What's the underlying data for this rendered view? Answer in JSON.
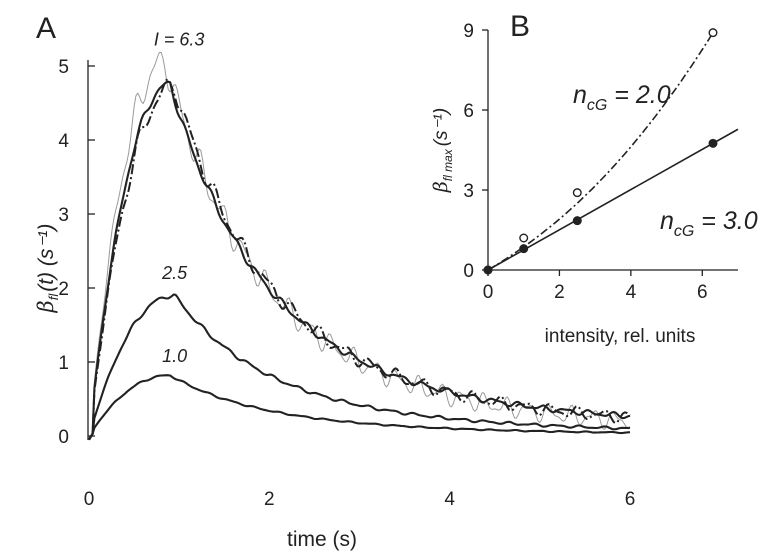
{
  "panels": {
    "A": "A",
    "B": "B"
  },
  "chart_data": [
    {
      "type": "line",
      "panel": "A",
      "xlabel": "time (s)",
      "ylabel_main": "β",
      "ylabel_sub": "fl",
      "ylabel_tail": "(t) (s⁻¹)",
      "xlim": [
        0,
        6
      ],
      "ylim": [
        0,
        5
      ],
      "xticks": [
        0,
        2,
        4,
        6
      ],
      "yticks": [
        0,
        1,
        2,
        3,
        4,
        5
      ],
      "annotations": [
        {
          "text": "I = 6.3",
          "x": 1.0,
          "y": 5.28
        },
        {
          "text": "2.5",
          "x": 0.95,
          "y": 2.12
        },
        {
          "text": "1.0",
          "x": 0.95,
          "y": 1.0
        }
      ],
      "series": [
        {
          "intensity": 6.3,
          "style": "solid",
          "peak": 4.75,
          "t_peak": 0.9,
          "baseline": 0.12
        },
        {
          "intensity": 6.3,
          "style": "dash-dot",
          "peak": 4.72,
          "t_peak": 0.95,
          "baseline": 0.1
        },
        {
          "intensity": 6.3,
          "style": "thin-gray",
          "peak": 5.05,
          "t_peak": 0.85,
          "baseline": 0.05
        },
        {
          "intensity": 2.5,
          "style": "solid",
          "peak": 1.9,
          "t_peak": 0.95,
          "baseline": 0.04
        },
        {
          "intensity": 1.0,
          "style": "solid",
          "peak": 0.82,
          "t_peak": 0.9,
          "baseline": 0.02
        }
      ]
    },
    {
      "type": "scatter",
      "panel": "B",
      "xlabel": "intensity, rel. units",
      "ylabel_main": "β",
      "ylabel_sub": "fl max",
      "ylabel_tail": "(s⁻¹)",
      "xlim": [
        0,
        7
      ],
      "ylim": [
        0,
        9
      ],
      "xticks": [
        0,
        2,
        4,
        6
      ],
      "yticks": [
        0,
        3,
        6,
        9
      ],
      "series": [
        {
          "marker": "open",
          "label": "n_cG = 2.0",
          "label_main": "n",
          "label_sub": "cG",
          "label_tail": " = 2.0",
          "x": [
            0,
            1.0,
            2.5,
            6.3
          ],
          "y": [
            0,
            1.2,
            2.9,
            8.9
          ],
          "fit": "dash-dot"
        },
        {
          "marker": "filled",
          "label": "n_cG = 3.0",
          "label_main": "n",
          "label_sub": "cG",
          "label_tail": " = 3.0",
          "x": [
            0,
            1.0,
            2.5,
            6.3
          ],
          "y": [
            0,
            0.8,
            1.85,
            4.75
          ],
          "fit": "solid"
        }
      ]
    }
  ]
}
